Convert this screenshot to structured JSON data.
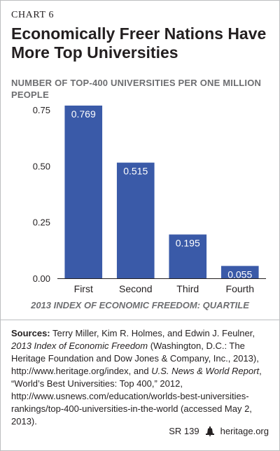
{
  "header": {
    "chart_label": "CHART 6",
    "title": "Economically Freer Nations Have More Top Universities"
  },
  "chart_data": {
    "type": "bar",
    "title": "Economically Freer Nations Have More Top Universities",
    "ylabel": "NUMBER OF TOP-400 UNIVERSITIES PER ONE MILLION PEOPLE",
    "xlabel": "2013 INDEX OF ECONOMIC FREEDOM: QUARTILE",
    "categories": [
      "First",
      "Second",
      "Third",
      "Fourth"
    ],
    "values": [
      0.769,
      0.515,
      0.195,
      0.055
    ],
    "value_labels": [
      "0.769",
      "0.515",
      "0.195",
      "0.055"
    ],
    "yticks": [
      0,
      0.25,
      0.5,
      0.75
    ],
    "ytick_labels": [
      "0.00",
      "0.25",
      "0.50",
      "0.75"
    ],
    "ylim": [
      0,
      0.769
    ],
    "grid": false,
    "legend": "none",
    "bar_color": "#3a5aa8",
    "value_label_color": "#ffffff"
  },
  "sources": {
    "label": "Sources:",
    "text_1": " Terry Miller, Kim R. Holmes, and Edwin J. Feulner, ",
    "italic_1": "2013 Index of Economic Freedom",
    "text_2": " (Washington, D.C.: The Heritage Foundation and Dow Jones & Company, Inc., 2013), http://www.heritage.org/index, and ",
    "italic_2": "U.S. News & World Report",
    "text_3": ", “World’s Best Universities: Top 400,” 2012, http://www.usnews.com/education/worlds-best-universities-rankings/top-400-universities-in-the-world (accessed May 2, 2013)."
  },
  "footer": {
    "report_id": "SR 139",
    "site": "heritage.org",
    "logo_icon": "liberty-bell-icon"
  }
}
